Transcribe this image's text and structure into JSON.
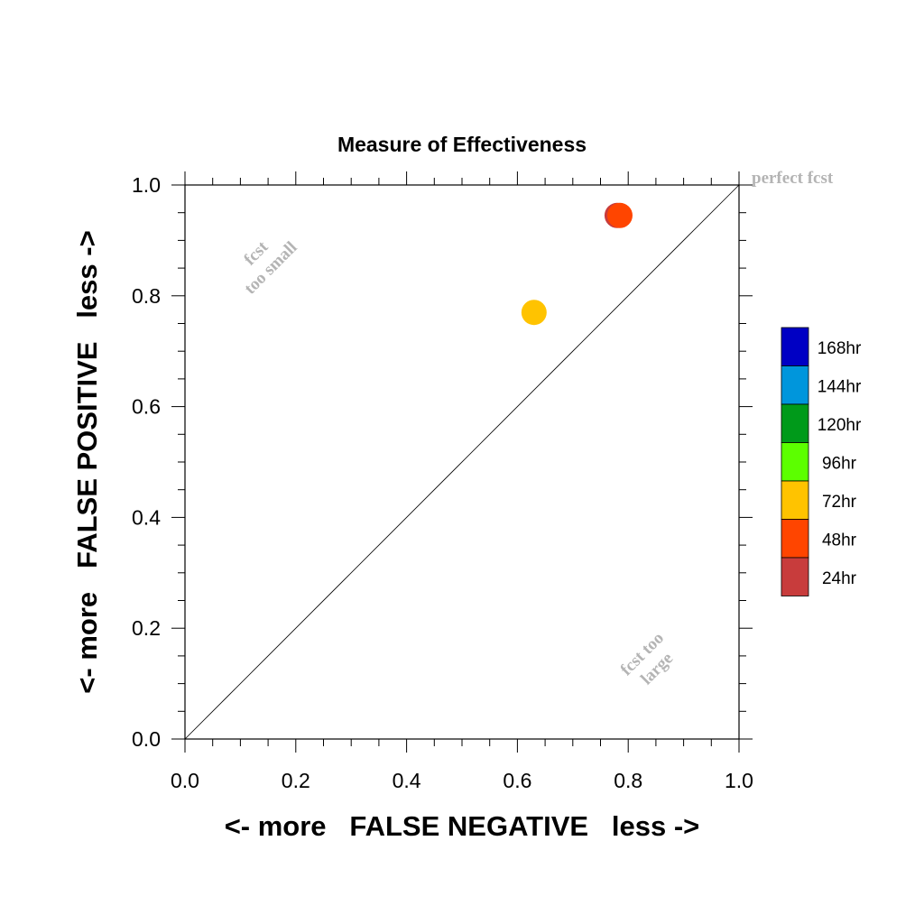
{
  "chart_data": {
    "type": "scatter",
    "title": "Measure of Effectiveness",
    "xlabel": "<- more   FALSE NEGATIVE   less ->",
    "ylabel": "<- more   FALSE POSITIVE   less ->",
    "xlim": [
      0,
      1
    ],
    "ylim": [
      0,
      1
    ],
    "x_ticks": [
      "0.0",
      "0.2",
      "0.4",
      "0.6",
      "0.8",
      "1.0"
    ],
    "y_ticks": [
      "0.0",
      "0.2",
      "0.4",
      "0.6",
      "0.8",
      "1.0"
    ],
    "annotations": {
      "perfect": "perfect fcst",
      "small_1": "fcst",
      "small_2": "too small",
      "large_1": "fcst too",
      "large_2": "large"
    },
    "legend": {
      "placement": "right",
      "entries": [
        {
          "label": "168hr",
          "color": "#0000c4"
        },
        {
          "label": "144hr",
          "color": "#0096dc"
        },
        {
          "label": "120hr",
          "color": "#009a1a"
        },
        {
          "label": "96hr",
          "color": "#5cff00"
        },
        {
          "label": "72hr",
          "color": "#ffc300"
        },
        {
          "label": "48hr",
          "color": "#ff4500"
        },
        {
          "label": "24hr",
          "color": "#c83c3c"
        }
      ]
    },
    "points": [
      {
        "series": "24hr",
        "x": 0.78,
        "y": 0.945,
        "color": "#c83c3c"
      },
      {
        "series": "48hr",
        "x": 0.785,
        "y": 0.945,
        "color": "#ff4500"
      },
      {
        "series": "72hr",
        "x": 0.63,
        "y": 0.77,
        "color": "#ffc300"
      }
    ],
    "reference_line": "diagonal",
    "grid": false
  }
}
